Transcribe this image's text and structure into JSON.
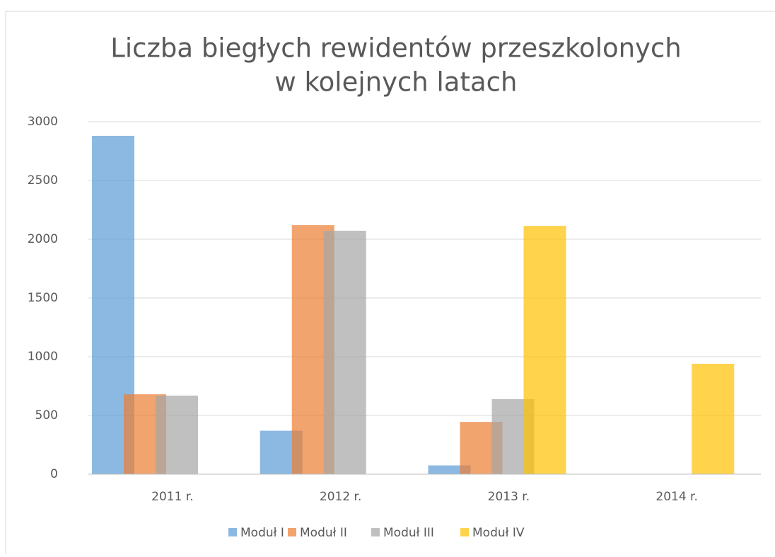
{
  "chart_data": {
    "type": "bar",
    "title": [
      "Liczba biegłych rewidentów przeszkolonych",
      "w kolejnych latach"
    ],
    "categories": [
      "2011 r.",
      "2012 r.",
      "2013 r.",
      "2014 r."
    ],
    "series": [
      {
        "name": "Moduł I",
        "color": "#5b9bd5",
        "values": [
          2880,
          370,
          75,
          0
        ]
      },
      {
        "name": "Moduł II",
        "color": "#ed7d31",
        "values": [
          680,
          2120,
          445,
          0
        ]
      },
      {
        "name": "Moduł III",
        "color": "#a5a5a5",
        "values": [
          669,
          2072,
          639,
          0
        ]
      },
      {
        "name": "Moduł IV",
        "color": "#ffc000",
        "values": [
          0,
          0,
          2114,
          940
        ]
      }
    ],
    "ylim": [
      0,
      3000
    ],
    "yticks": [
      0,
      500,
      1000,
      1500,
      2000,
      2500,
      3000
    ],
    "grid": true,
    "legend": "bottom"
  }
}
